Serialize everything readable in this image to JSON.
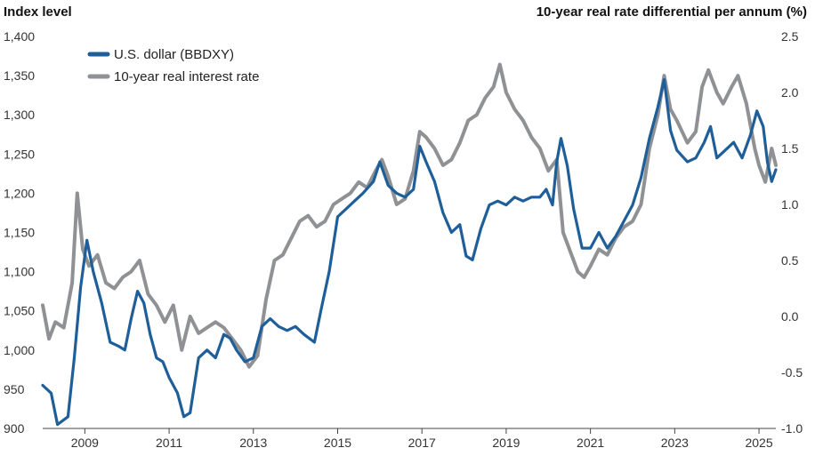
{
  "chart_data": {
    "type": "line",
    "left_axis_title": "Index level",
    "right_axis_title": "10-year real rate differential per annum (%)",
    "x_range": [
      2008.0,
      2025.4
    ],
    "x_ticks": [
      2009,
      2011,
      2013,
      2015,
      2017,
      2019,
      2021,
      2023,
      2025
    ],
    "x_tick_labels": [
      "2009",
      "2011",
      "2013",
      "2015",
      "2017",
      "2019",
      "2021",
      "2023",
      "2025"
    ],
    "y_left": {
      "range": [
        900,
        1400
      ],
      "ticks": [
        900,
        950,
        1000,
        1050,
        1100,
        1150,
        1200,
        1250,
        1300,
        1350,
        1400
      ],
      "tick_labels": [
        "900",
        "950",
        "1,000",
        "1,050",
        "1,100",
        "1,150",
        "1,200",
        "1,250",
        "1,300",
        "1,350",
        "1,400"
      ]
    },
    "y_right": {
      "range": [
        -1.0,
        2.5
      ],
      "ticks": [
        -1.0,
        -0.5,
        0.0,
        0.5,
        1.0,
        1.5,
        2.0,
        2.5
      ],
      "tick_labels": [
        "-1.0",
        "-0.5",
        "0.0",
        "0.5",
        "1.0",
        "1.5",
        "2.0",
        "2.5"
      ]
    },
    "grid": false,
    "legend_position": "top-left",
    "series": [
      {
        "name": "U.S. dollar (BBDXY)",
        "axis": "left",
        "color": "#1f5f99",
        "points": [
          [
            2008.0,
            955
          ],
          [
            2008.2,
            945
          ],
          [
            2008.35,
            905
          ],
          [
            2008.6,
            915
          ],
          [
            2008.75,
            990
          ],
          [
            2008.9,
            1080
          ],
          [
            2009.05,
            1140
          ],
          [
            2009.2,
            1100
          ],
          [
            2009.4,
            1060
          ],
          [
            2009.6,
            1010
          ],
          [
            2009.8,
            1005
          ],
          [
            2009.95,
            1000
          ],
          [
            2010.1,
            1040
          ],
          [
            2010.25,
            1075
          ],
          [
            2010.4,
            1060
          ],
          [
            2010.55,
            1020
          ],
          [
            2010.7,
            990
          ],
          [
            2010.85,
            985
          ],
          [
            2011.0,
            965
          ],
          [
            2011.2,
            945
          ],
          [
            2011.35,
            915
          ],
          [
            2011.5,
            920
          ],
          [
            2011.7,
            990
          ],
          [
            2011.9,
            1000
          ],
          [
            2012.1,
            990
          ],
          [
            2012.3,
            1020
          ],
          [
            2012.45,
            1015
          ],
          [
            2012.6,
            1000
          ],
          [
            2012.8,
            985
          ],
          [
            2013.0,
            990
          ],
          [
            2013.2,
            1030
          ],
          [
            2013.4,
            1040
          ],
          [
            2013.6,
            1030
          ],
          [
            2013.8,
            1025
          ],
          [
            2014.0,
            1030
          ],
          [
            2014.2,
            1020
          ],
          [
            2014.45,
            1010
          ],
          [
            2014.6,
            1050
          ],
          [
            2014.8,
            1100
          ],
          [
            2015.0,
            1170
          ],
          [
            2015.2,
            1180
          ],
          [
            2015.4,
            1190
          ],
          [
            2015.6,
            1200
          ],
          [
            2015.85,
            1215
          ],
          [
            2016.0,
            1240
          ],
          [
            2016.2,
            1210
          ],
          [
            2016.4,
            1200
          ],
          [
            2016.6,
            1195
          ],
          [
            2016.8,
            1205
          ],
          [
            2016.95,
            1260
          ],
          [
            2017.1,
            1240
          ],
          [
            2017.3,
            1215
          ],
          [
            2017.5,
            1175
          ],
          [
            2017.7,
            1150
          ],
          [
            2017.9,
            1160
          ],
          [
            2018.05,
            1120
          ],
          [
            2018.2,
            1115
          ],
          [
            2018.4,
            1155
          ],
          [
            2018.6,
            1185
          ],
          [
            2018.8,
            1190
          ],
          [
            2019.0,
            1185
          ],
          [
            2019.2,
            1195
          ],
          [
            2019.4,
            1190
          ],
          [
            2019.6,
            1195
          ],
          [
            2019.8,
            1195
          ],
          [
            2019.95,
            1205
          ],
          [
            2020.1,
            1185
          ],
          [
            2020.2,
            1240
          ],
          [
            2020.3,
            1270
          ],
          [
            2020.45,
            1235
          ],
          [
            2020.6,
            1180
          ],
          [
            2020.8,
            1130
          ],
          [
            2021.0,
            1130
          ],
          [
            2021.2,
            1150
          ],
          [
            2021.4,
            1130
          ],
          [
            2021.6,
            1145
          ],
          [
            2021.8,
            1165
          ],
          [
            2022.0,
            1185
          ],
          [
            2022.2,
            1220
          ],
          [
            2022.4,
            1270
          ],
          [
            2022.6,
            1310
          ],
          [
            2022.75,
            1345
          ],
          [
            2022.9,
            1280
          ],
          [
            2023.05,
            1255
          ],
          [
            2023.3,
            1240
          ],
          [
            2023.5,
            1245
          ],
          [
            2023.7,
            1265
          ],
          [
            2023.85,
            1285
          ],
          [
            2024.0,
            1245
          ],
          [
            2024.2,
            1255
          ],
          [
            2024.4,
            1265
          ],
          [
            2024.6,
            1245
          ],
          [
            2024.8,
            1275
          ],
          [
            2024.95,
            1305
          ],
          [
            2025.1,
            1285
          ],
          [
            2025.2,
            1240
          ],
          [
            2025.3,
            1215
          ],
          [
            2025.4,
            1230
          ]
        ]
      },
      {
        "name": "10-year real interest rate",
        "axis": "right",
        "color": "#8f9194",
        "points": [
          [
            2008.0,
            0.1
          ],
          [
            2008.15,
            -0.2
          ],
          [
            2008.3,
            -0.05
          ],
          [
            2008.5,
            -0.1
          ],
          [
            2008.7,
            0.3
          ],
          [
            2008.82,
            1.1
          ],
          [
            2008.95,
            0.6
          ],
          [
            2009.1,
            0.45
          ],
          [
            2009.3,
            0.55
          ],
          [
            2009.5,
            0.3
          ],
          [
            2009.7,
            0.25
          ],
          [
            2009.9,
            0.35
          ],
          [
            2010.1,
            0.4
          ],
          [
            2010.3,
            0.5
          ],
          [
            2010.5,
            0.2
          ],
          [
            2010.7,
            0.1
          ],
          [
            2010.9,
            -0.05
          ],
          [
            2011.1,
            0.1
          ],
          [
            2011.3,
            -0.3
          ],
          [
            2011.5,
            0.0
          ],
          [
            2011.7,
            -0.15
          ],
          [
            2011.9,
            -0.1
          ],
          [
            2012.1,
            -0.05
          ],
          [
            2012.3,
            -0.1
          ],
          [
            2012.5,
            -0.2
          ],
          [
            2012.7,
            -0.3
          ],
          [
            2012.9,
            -0.45
          ],
          [
            2013.1,
            -0.35
          ],
          [
            2013.3,
            0.15
          ],
          [
            2013.5,
            0.5
          ],
          [
            2013.7,
            0.55
          ],
          [
            2013.9,
            0.7
          ],
          [
            2014.1,
            0.85
          ],
          [
            2014.3,
            0.9
          ],
          [
            2014.5,
            0.8
          ],
          [
            2014.7,
            0.85
          ],
          [
            2014.9,
            1.0
          ],
          [
            2015.1,
            1.05
          ],
          [
            2015.3,
            1.1
          ],
          [
            2015.5,
            1.2
          ],
          [
            2015.7,
            1.15
          ],
          [
            2015.9,
            1.3
          ],
          [
            2016.05,
            1.4
          ],
          [
            2016.2,
            1.25
          ],
          [
            2016.4,
            1.0
          ],
          [
            2016.6,
            1.05
          ],
          [
            2016.8,
            1.3
          ],
          [
            2016.95,
            1.65
          ],
          [
            2017.1,
            1.6
          ],
          [
            2017.3,
            1.5
          ],
          [
            2017.5,
            1.35
          ],
          [
            2017.7,
            1.4
          ],
          [
            2017.9,
            1.55
          ],
          [
            2018.1,
            1.75
          ],
          [
            2018.3,
            1.8
          ],
          [
            2018.5,
            1.95
          ],
          [
            2018.7,
            2.05
          ],
          [
            2018.85,
            2.25
          ],
          [
            2019.0,
            2.0
          ],
          [
            2019.2,
            1.85
          ],
          [
            2019.4,
            1.75
          ],
          [
            2019.6,
            1.6
          ],
          [
            2019.8,
            1.5
          ],
          [
            2020.0,
            1.3
          ],
          [
            2020.2,
            1.4
          ],
          [
            2020.35,
            0.75
          ],
          [
            2020.5,
            0.6
          ],
          [
            2020.7,
            0.4
          ],
          [
            2020.85,
            0.35
          ],
          [
            2021.0,
            0.45
          ],
          [
            2021.2,
            0.6
          ],
          [
            2021.4,
            0.55
          ],
          [
            2021.6,
            0.7
          ],
          [
            2021.8,
            0.8
          ],
          [
            2022.0,
            0.85
          ],
          [
            2022.2,
            1.0
          ],
          [
            2022.4,
            1.5
          ],
          [
            2022.6,
            1.8
          ],
          [
            2022.75,
            2.15
          ],
          [
            2022.9,
            1.85
          ],
          [
            2023.05,
            1.75
          ],
          [
            2023.3,
            1.55
          ],
          [
            2023.5,
            1.65
          ],
          [
            2023.65,
            2.05
          ],
          [
            2023.8,
            2.2
          ],
          [
            2024.0,
            2.0
          ],
          [
            2024.15,
            1.9
          ],
          [
            2024.35,
            2.05
          ],
          [
            2024.5,
            2.15
          ],
          [
            2024.7,
            1.9
          ],
          [
            2024.9,
            1.5
          ],
          [
            2025.0,
            1.35
          ],
          [
            2025.15,
            1.2
          ],
          [
            2025.3,
            1.5
          ],
          [
            2025.4,
            1.35
          ]
        ]
      }
    ]
  }
}
